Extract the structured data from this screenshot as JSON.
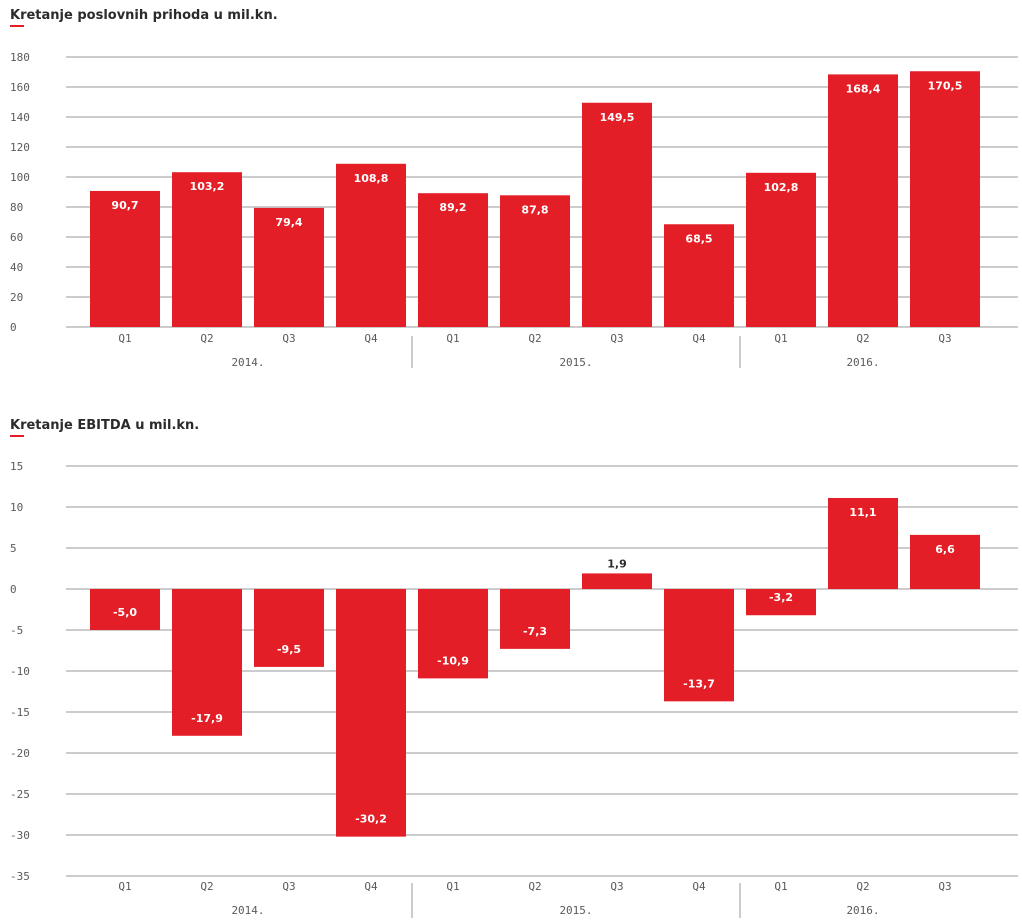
{
  "colors": {
    "bar": "#e41e26",
    "grid": "#9a9a9a",
    "text": "#5a5a5a",
    "title": "#2b2b2b"
  },
  "chart_data": [
    {
      "type": "bar",
      "title": "Kretanje poslovnih prihoda u mil.kn.",
      "xlabel": "",
      "ylabel": "",
      "categories": [
        "Q1",
        "Q2",
        "Q3",
        "Q4",
        "Q1",
        "Q2",
        "Q3",
        "Q4",
        "Q1",
        "Q2",
        "Q3"
      ],
      "groups": [
        {
          "label": "2014.",
          "count": 4
        },
        {
          "label": "2015.",
          "count": 4
        },
        {
          "label": "2016.",
          "count": 3
        }
      ],
      "values": [
        90.7,
        103.2,
        79.4,
        108.8,
        89.2,
        87.8,
        149.5,
        68.5,
        102.8,
        168.4,
        170.5
      ],
      "value_labels": [
        "90,7",
        "103,2",
        "79,4",
        "108,8",
        "89,2",
        "87,8",
        "149,5",
        "68,5",
        "102,8",
        "168,4",
        "170,5"
      ],
      "yticks": [
        0,
        20,
        40,
        60,
        80,
        100,
        120,
        140,
        160,
        180
      ],
      "ylim": [
        0,
        180
      ],
      "grid": true,
      "legend": "none"
    },
    {
      "type": "bar",
      "title": "Kretanje EBITDA u mil.kn.",
      "xlabel": "",
      "ylabel": "",
      "categories": [
        "Q1",
        "Q2",
        "Q3",
        "Q4",
        "Q1",
        "Q2",
        "Q3",
        "Q4",
        "Q1",
        "Q2",
        "Q3"
      ],
      "groups": [
        {
          "label": "2014.",
          "count": 4
        },
        {
          "label": "2015.",
          "count": 4
        },
        {
          "label": "2016.",
          "count": 3
        }
      ],
      "values": [
        -5.0,
        -17.9,
        -9.5,
        -30.2,
        -10.9,
        -7.3,
        1.9,
        -13.7,
        -3.2,
        11.1,
        6.6
      ],
      "value_labels": [
        "-5,0",
        "-17,9",
        "-9,5",
        "-30,2",
        "-10,9",
        "-7,3",
        "1,9",
        "-13,7",
        "-3,2",
        "11,1",
        "6,6"
      ],
      "yticks": [
        -35,
        -30,
        -25,
        -20,
        -15,
        -10,
        -5,
        0,
        5,
        10,
        15
      ],
      "ylim": [
        -35,
        15
      ],
      "grid": true,
      "legend": "none"
    }
  ]
}
